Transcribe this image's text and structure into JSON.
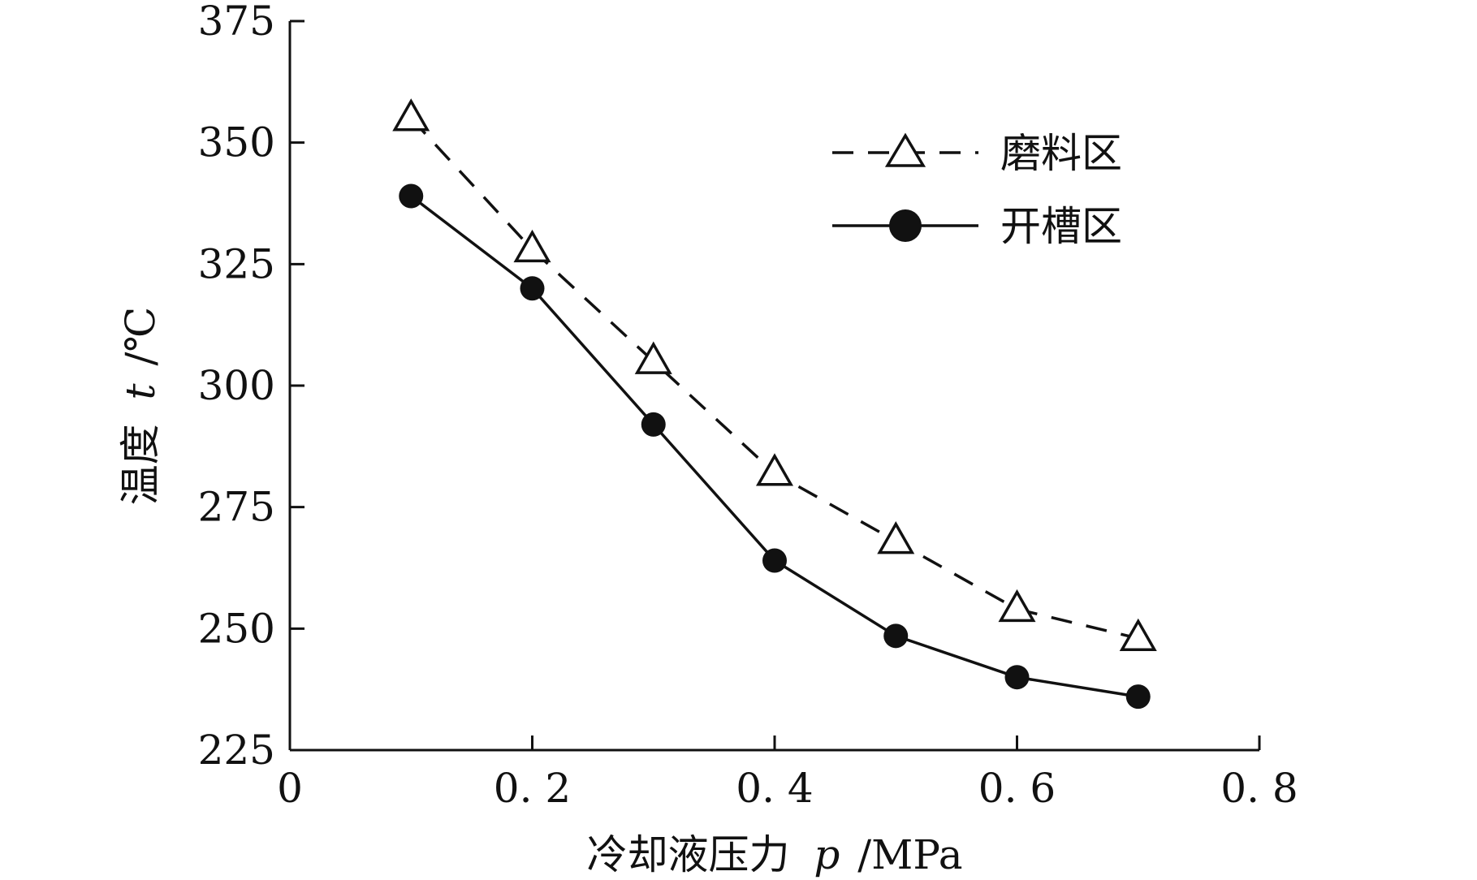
{
  "chart_data": {
    "type": "line",
    "title": "",
    "xlabel": {
      "main": "冷却液压力",
      "symbol": "p",
      "unit": "/MPa"
    },
    "ylabel": {
      "main": "温度",
      "symbol": "t",
      "unit": "/℃"
    },
    "xlim": [
      0,
      0.8
    ],
    "ylim": [
      225,
      375
    ],
    "xticks": [
      0,
      0.2,
      0.4,
      0.6,
      0.8
    ],
    "xtick_labels": [
      "0",
      "0. 2",
      "0. 4",
      "0. 6",
      "0. 8"
    ],
    "yticks": [
      225,
      250,
      275,
      300,
      325,
      350,
      375
    ],
    "ytick_labels": [
      "225",
      "250",
      "275",
      "300",
      "325",
      "350",
      "375"
    ],
    "grid": false,
    "legend_position": "top-right",
    "x": [
      0.1,
      0.2,
      0.3,
      0.4,
      0.5,
      0.6,
      0.7
    ],
    "series": [
      {
        "name": "磨料区",
        "values": [
          355,
          328,
          305,
          282,
          268,
          254,
          248
        ],
        "marker": "triangle-open",
        "line": "dashed",
        "color": "#111111"
      },
      {
        "name": "开槽区",
        "values": [
          339,
          320,
          292,
          264,
          248.5,
          240,
          236
        ],
        "marker": "circle-filled",
        "line": "solid",
        "color": "#111111"
      }
    ]
  }
}
